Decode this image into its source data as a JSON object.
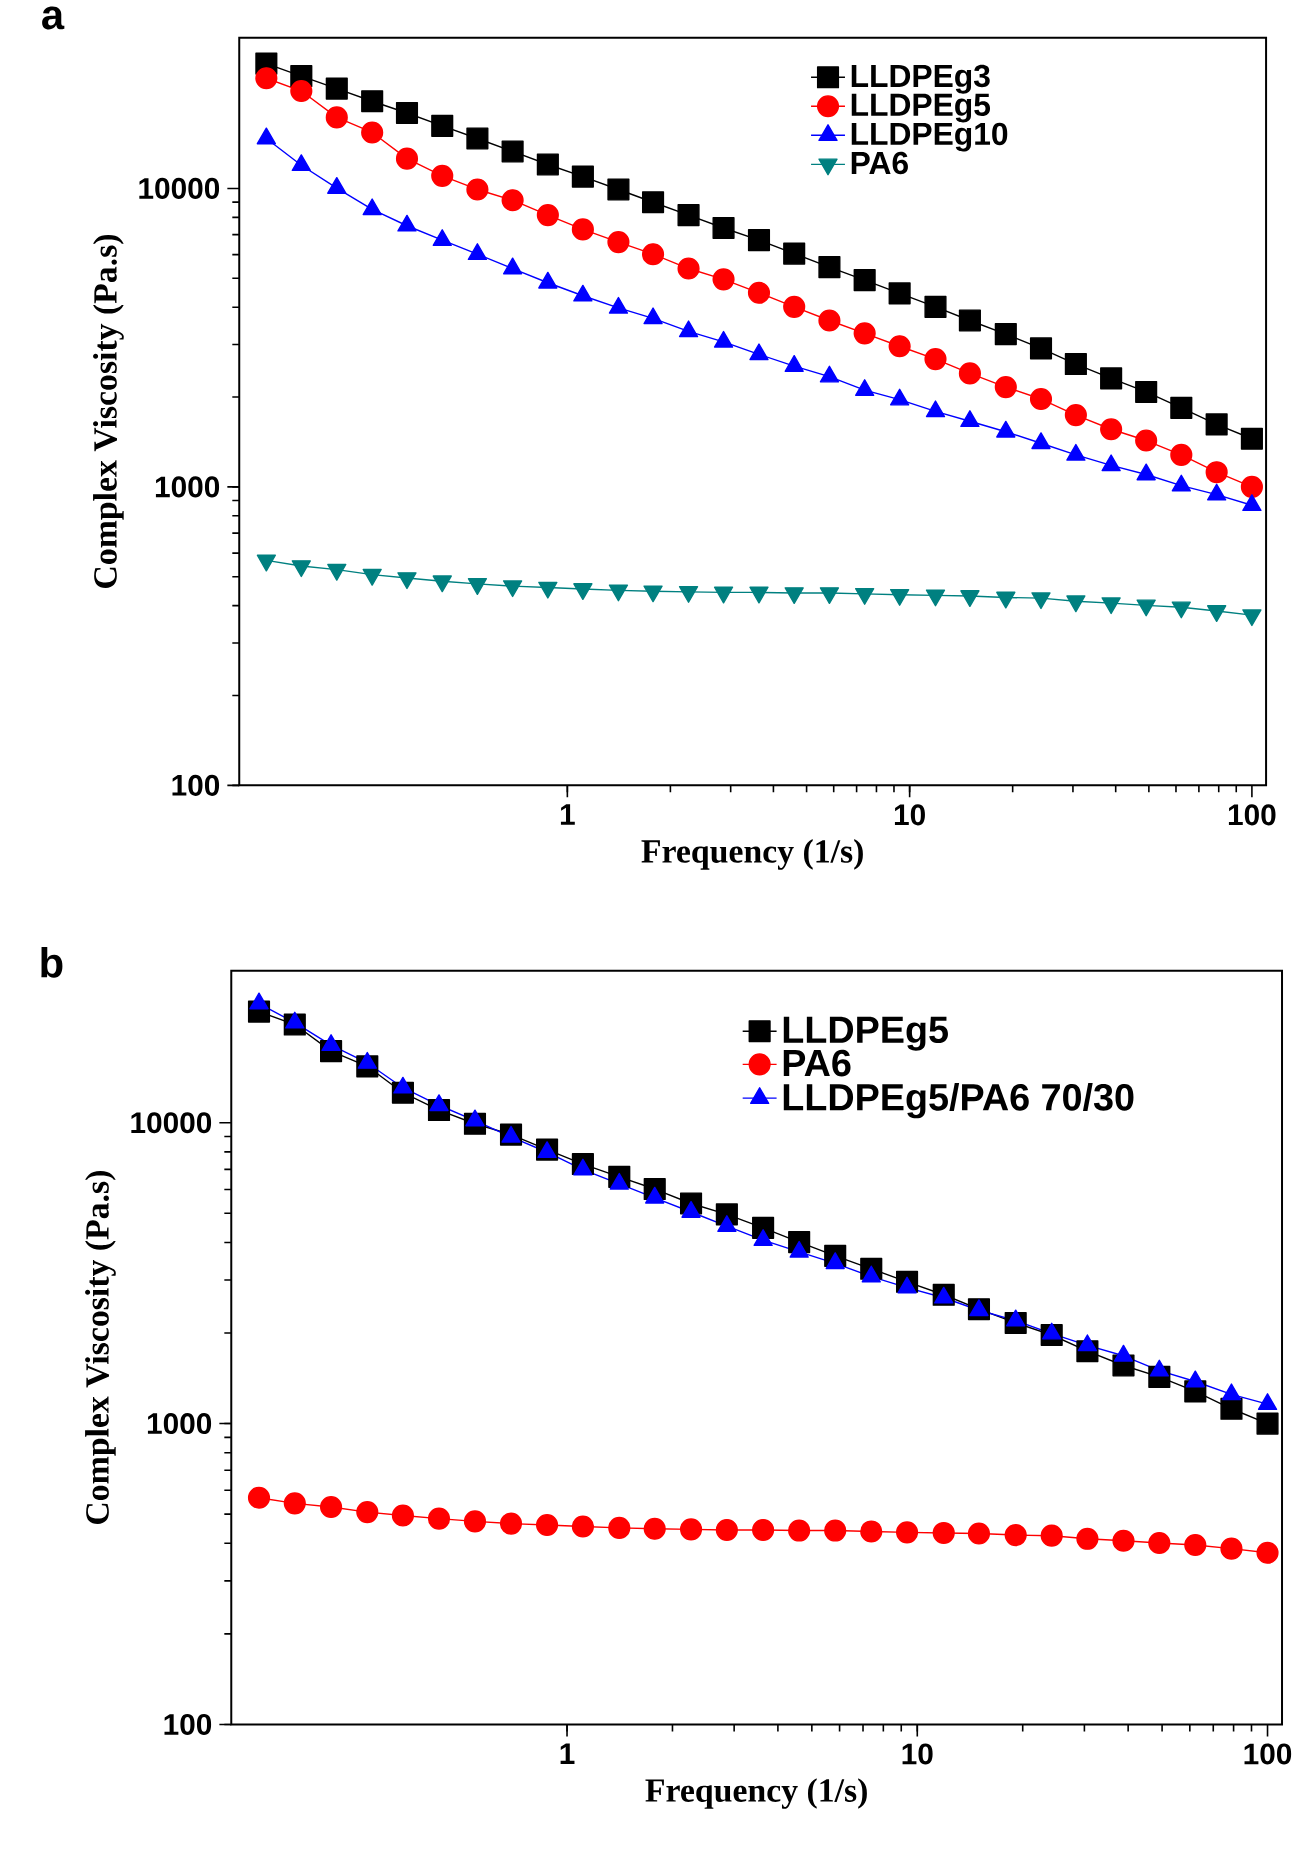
{
  "chart_data": [
    {
      "type": "line",
      "title": "a",
      "xlabel": "Frequency (1/s)",
      "ylabel": "Complex Viscosity (Pa.s)",
      "log": "xy",
      "legend": "top right",
      "xlim": [
        0.11,
        110
      ],
      "ylim": [
        100,
        32000
      ],
      "xticks": [
        1,
        10,
        100
      ],
      "yticks": [
        100,
        1000,
        10000
      ],
      "x": [
        0.132,
        0.167,
        0.212,
        0.269,
        0.34,
        0.431,
        0.546,
        0.692,
        0.877,
        1.11,
        1.41,
        1.78,
        2.26,
        2.86,
        3.63,
        4.6,
        5.83,
        7.39,
        9.35,
        11.9,
        15.0,
        19.1,
        24.2,
        30.6,
        38.8,
        49.1,
        62.2,
        78.9,
        100
      ],
      "series": [
        {
          "name": "LLDPEg3",
          "color": "#000000",
          "marker": "square",
          "values": [
            26200,
            23800,
            21600,
            19600,
            17900,
            16200,
            14700,
            13300,
            12030,
            10950,
            9920,
            8990,
            8140,
            7370,
            6710,
            6050,
            5450,
            4930,
            4450,
            4010,
            3610,
            3250,
            2910,
            2580,
            2310,
            2080,
            1840,
            1620,
            1450
          ]
        },
        {
          "name": "LLDPEg5",
          "color": "#ff0000",
          "marker": "circle",
          "values": [
            23400,
            21200,
            17300,
            15400,
            12580,
            11020,
            9920,
            9130,
            8140,
            7290,
            6610,
            6020,
            5390,
            4960,
            4470,
            4010,
            3610,
            3270,
            2960,
            2680,
            2400,
            2160,
            1970,
            1740,
            1560,
            1430,
            1280,
            1120,
            1000
          ]
        },
        {
          "name": "LLDPEg10",
          "color": "#0000ff",
          "marker": "triangle",
          "values": [
            14700,
            11960,
            10030,
            8510,
            7500,
            6710,
            6020,
            5390,
            4830,
            4370,
            3980,
            3670,
            3320,
            3060,
            2780,
            2540,
            2340,
            2110,
            1960,
            1790,
            1660,
            1530,
            1400,
            1280,
            1180,
            1100,
            1010,
            942,
            868
          ]
        },
        {
          "name": "PA6",
          "color": "#008080",
          "marker": "triangle down",
          "values": [
            567,
            543,
            528,
            508,
            495,
            483,
            473,
            465,
            460,
            455,
            450,
            447,
            445,
            443,
            443,
            441,
            441,
            438,
            435,
            433,
            431,
            426,
            424,
            414,
            408,
            401,
            395,
            384,
            372
          ]
        }
      ]
    },
    {
      "type": "line",
      "title": "b",
      "xlabel": "Frequency (1/s)",
      "ylabel": "Complex Viscosity (Pa.s)",
      "log": "xy",
      "legend": "top right",
      "xlim": [
        0.11,
        110
      ],
      "ylim": [
        100,
        32000
      ],
      "xticks": [
        1,
        10,
        100
      ],
      "yticks": [
        100,
        1000,
        10000
      ],
      "x": [
        0.132,
        0.167,
        0.212,
        0.269,
        0.34,
        0.431,
        0.546,
        0.692,
        0.877,
        1.11,
        1.41,
        1.78,
        2.26,
        2.86,
        3.63,
        4.6,
        5.83,
        7.39,
        9.35,
        11.9,
        15.0,
        19.1,
        24.2,
        30.6,
        38.8,
        49.1,
        62.2,
        78.9,
        100
      ],
      "series": [
        {
          "name": "LLDPEg5",
          "color": "#000000",
          "marker": "square",
          "values": [
            23400,
            21200,
            17300,
            15400,
            12580,
            11020,
            9920,
            9130,
            8140,
            7290,
            6610,
            6020,
            5390,
            4960,
            4470,
            4010,
            3610,
            3270,
            2960,
            2680,
            2400,
            2160,
            1970,
            1740,
            1560,
            1430,
            1280,
            1120,
            1000
          ]
        },
        {
          "name": "PA6",
          "color": "#ff0000",
          "marker": "circle",
          "values": [
            567,
            543,
            528,
            508,
            495,
            483,
            473,
            465,
            460,
            455,
            450,
            447,
            445,
            443,
            443,
            441,
            441,
            438,
            435,
            433,
            431,
            426,
            424,
            414,
            408,
            401,
            395,
            384,
            372
          ]
        },
        {
          "name": "LLDPEg5/PA6 70/30",
          "color": "#0000ff",
          "marker": "triangle",
          "values": [
            24900,
            21500,
            18100,
            15800,
            13070,
            11430,
            10170,
            8970,
            7980,
            6980,
            6260,
            5630,
            5050,
            4530,
            4070,
            3720,
            3410,
            3080,
            2830,
            2620,
            2380,
            2200,
            1990,
            1820,
            1680,
            1500,
            1380,
            1250,
            1160
          ]
        }
      ]
    }
  ]
}
